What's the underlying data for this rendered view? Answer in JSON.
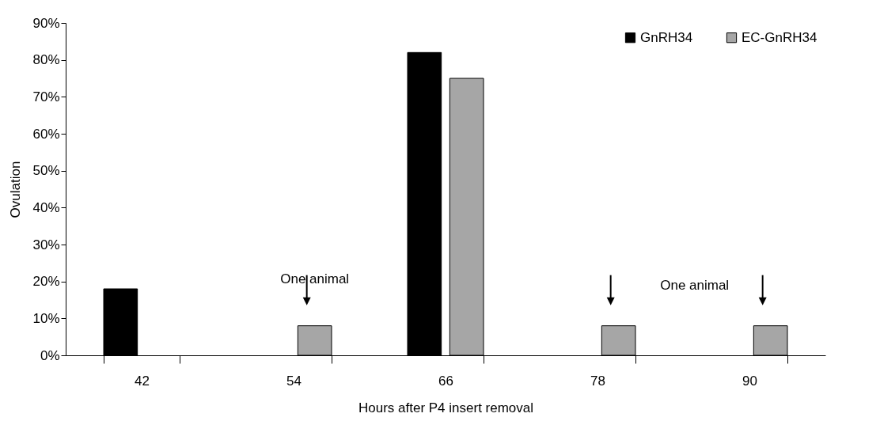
{
  "chart_data": {
    "type": "bar",
    "xlabel": "Hours after P4 insert  removal",
    "ylabel": "Ovulation",
    "categories": [
      "42",
      "54",
      "66",
      "78",
      "90"
    ],
    "series": [
      {
        "name": "GnRH34",
        "color": "#000000",
        "values": [
          18,
          0,
          82,
          0,
          0
        ]
      },
      {
        "name": "EC-GnRH34",
        "color": "#a6a6a6",
        "values": [
          0,
          8,
          75,
          8,
          8
        ]
      }
    ],
    "ylim": [
      0,
      90
    ],
    "yticks": [
      {
        "value": 0,
        "label": "0%"
      },
      {
        "value": 10,
        "label": "10%"
      },
      {
        "value": 20,
        "label": "20%"
      },
      {
        "value": 30,
        "label": "30%"
      },
      {
        "value": 40,
        "label": "40%"
      },
      {
        "value": 50,
        "label": "50%"
      },
      {
        "value": 60,
        "label": "60%"
      },
      {
        "value": 70,
        "label": "70%"
      },
      {
        "value": 80,
        "label": "80%"
      },
      {
        "value": 90,
        "label": "90%"
      }
    ],
    "annotations": [
      "One animal",
      "One animal"
    ],
    "grid": false,
    "legend": "top right"
  }
}
